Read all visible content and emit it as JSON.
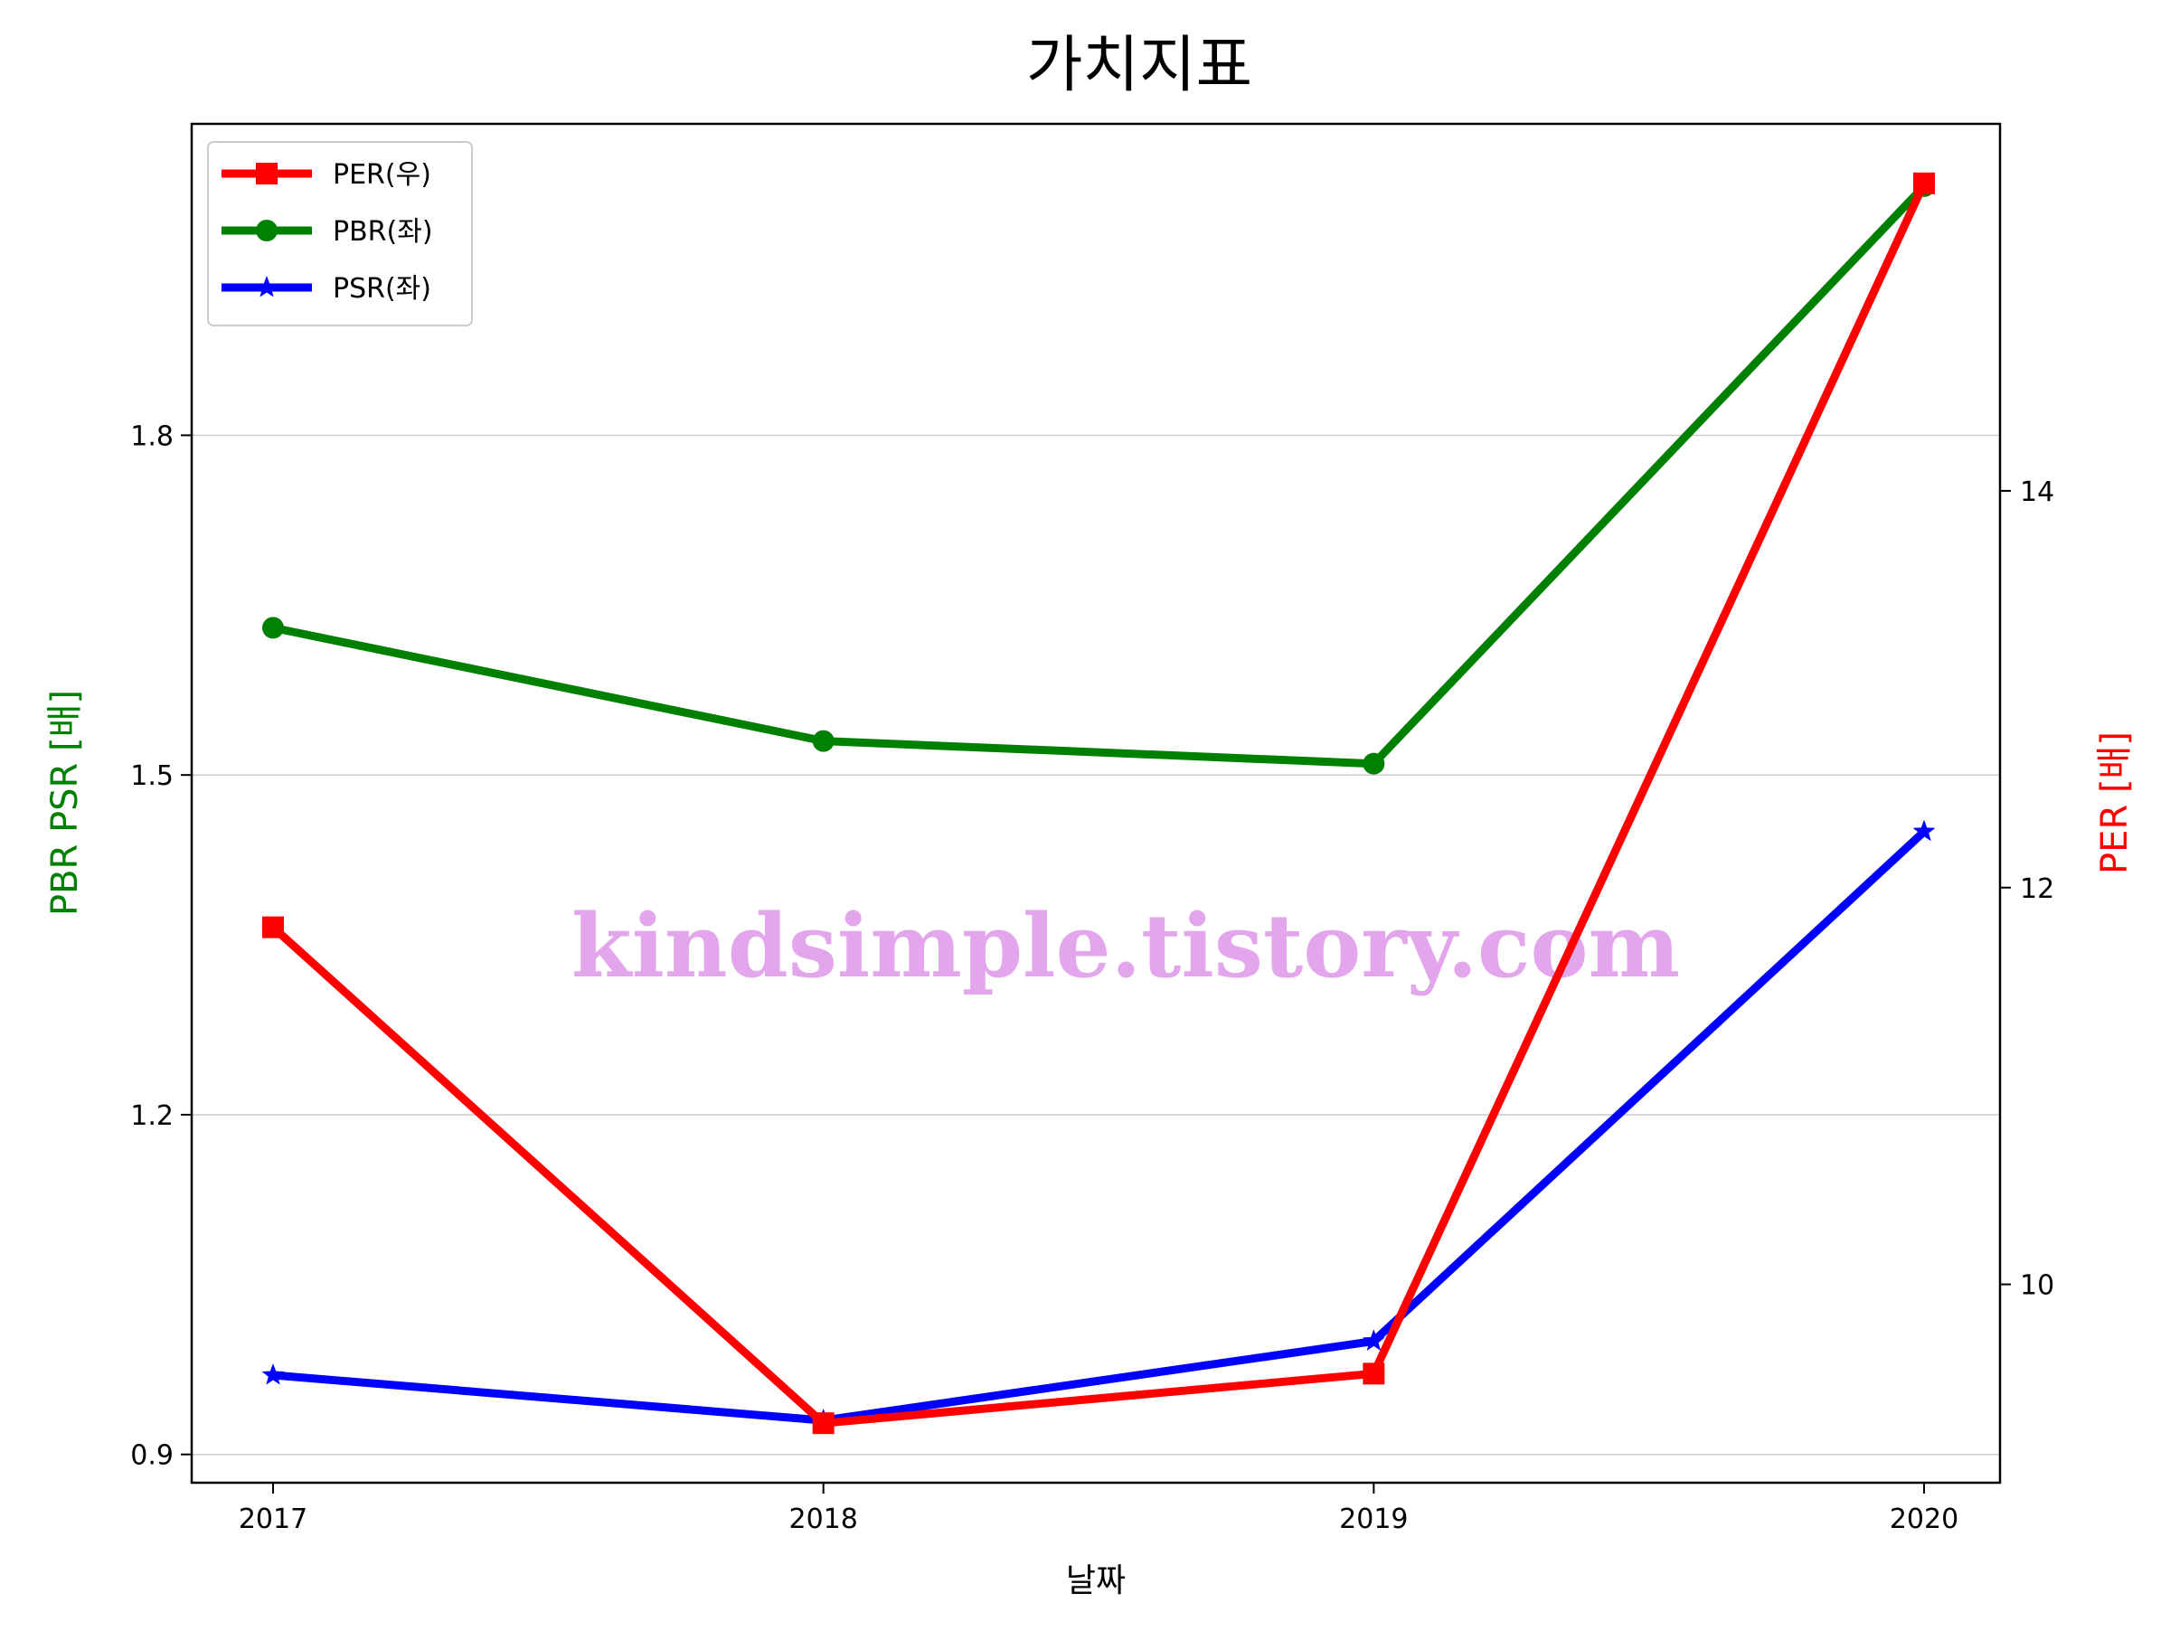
{
  "chart_data": {
    "type": "line",
    "title": "가치지표",
    "xlabel": "날짜",
    "ylabel_left": "PBR PSR [배]",
    "ylabel_right": "PER [배]",
    "categories": [
      "2017",
      "2018",
      "2019",
      "2020"
    ],
    "left_axis": {
      "ylim": [
        0.875,
        2.075
      ],
      "ticks": [
        0.9,
        1.2,
        1.5,
        1.8
      ],
      "tick_labels": [
        "0.9",
        "1.2",
        "1.5",
        "1.8"
      ]
    },
    "right_axis": {
      "ylim": [
        9.0,
        15.85
      ],
      "ticks": [
        10,
        12,
        14
      ],
      "tick_labels": [
        "10",
        "12",
        "14"
      ]
    },
    "grid": "horizontal",
    "legend_position": "top-left",
    "series": [
      {
        "name": "PER(우)",
        "axis": "right",
        "color": "#ff0000",
        "marker": "square",
        "values": [
          11.8,
          9.3,
          9.55,
          15.55
        ]
      },
      {
        "name": "PBR(좌)",
        "axis": "left",
        "color": "#008000",
        "marker": "circle",
        "values": [
          1.63,
          1.53,
          1.51,
          2.02
        ]
      },
      {
        "name": "PSR(좌)",
        "axis": "left",
        "color": "#0000ff",
        "marker": "star",
        "values": [
          0.97,
          0.93,
          1.0,
          1.45
        ]
      }
    ]
  },
  "colors": {
    "left_label": "#008000",
    "right_label": "#ff0000",
    "grid": "#cccccc",
    "watermark": "#e3a6ec"
  },
  "watermark_text": "kindsimple.tistory.com"
}
